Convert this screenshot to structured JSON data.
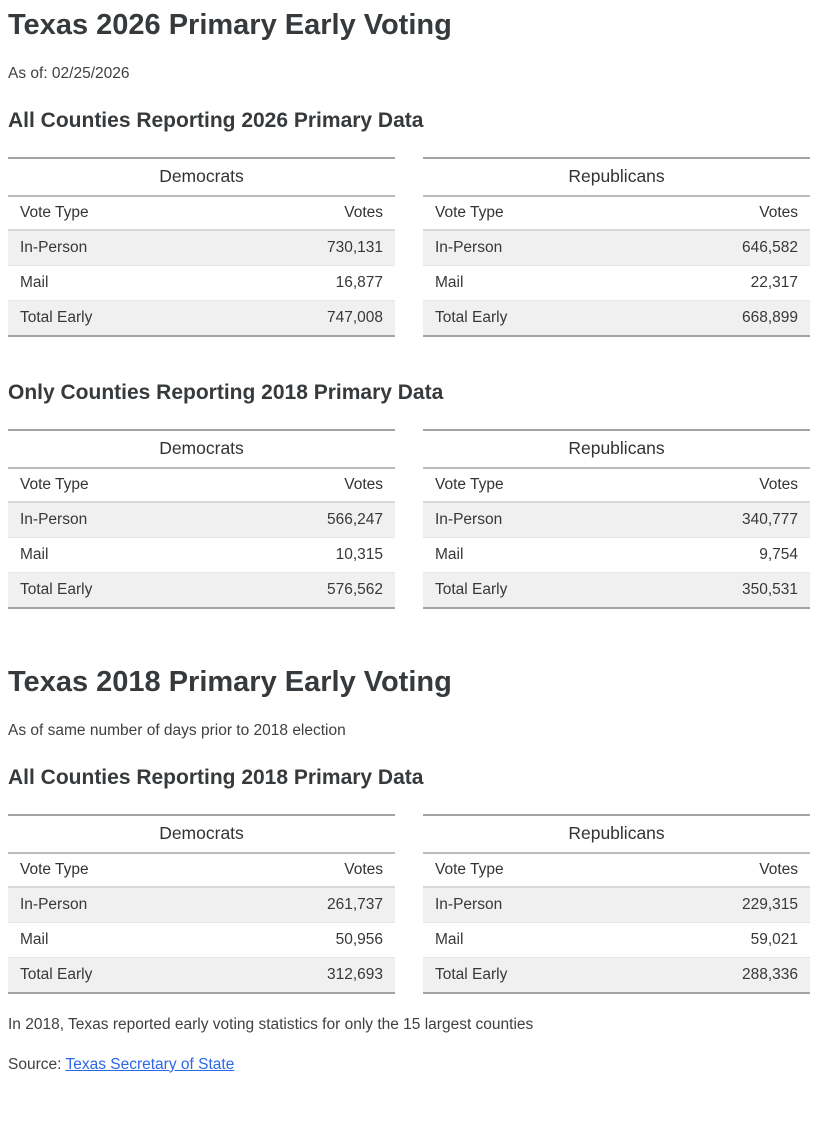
{
  "header": {
    "title": "Texas 2026 Primary Early Voting",
    "asof": "As of: 02/25/2026"
  },
  "header2": {
    "title": "Texas 2018 Primary Early Voting",
    "asof": "As of same number of days prior to 2018 election"
  },
  "colors": {
    "heading_text": "#373a3c",
    "body_text": "#404040",
    "link_blue": "#2b67e8",
    "row_stripe": "#f0f0f0",
    "border_dark": "#a3a3a3",
    "border_light": "#d9d9d9"
  },
  "sections": [
    {
      "heading": "All Counties Reporting 2026 Primary Data",
      "tables": [
        {
          "party": "Democrats",
          "columns": [
            "Vote Type",
            "Votes"
          ],
          "rows": [
            {
              "type": "In-Person",
              "votes": "730,131"
            },
            {
              "type": "Mail",
              "votes": "16,877"
            },
            {
              "type": "Total Early",
              "votes": "747,008"
            }
          ]
        },
        {
          "party": "Republicans",
          "columns": [
            "Vote Type",
            "Votes"
          ],
          "rows": [
            {
              "type": "In-Person",
              "votes": "646,582"
            },
            {
              "type": "Mail",
              "votes": "22,317"
            },
            {
              "type": "Total Early",
              "votes": "668,899"
            }
          ]
        }
      ]
    },
    {
      "heading": "Only Counties Reporting 2018 Primary Data",
      "tables": [
        {
          "party": "Democrats",
          "columns": [
            "Vote Type",
            "Votes"
          ],
          "rows": [
            {
              "type": "In-Person",
              "votes": "566,247"
            },
            {
              "type": "Mail",
              "votes": "10,315"
            },
            {
              "type": "Total Early",
              "votes": "576,562"
            }
          ]
        },
        {
          "party": "Republicans",
          "columns": [
            "Vote Type",
            "Votes"
          ],
          "rows": [
            {
              "type": "In-Person",
              "votes": "340,777"
            },
            {
              "type": "Mail",
              "votes": "9,754"
            },
            {
              "type": "Total Early",
              "votes": "350,531"
            }
          ]
        }
      ]
    },
    {
      "heading": "All Counties Reporting 2018 Primary Data",
      "tables": [
        {
          "party": "Democrats",
          "columns": [
            "Vote Type",
            "Votes"
          ],
          "rows": [
            {
              "type": "In-Person",
              "votes": "261,737"
            },
            {
              "type": "Mail",
              "votes": "50,956"
            },
            {
              "type": "Total Early",
              "votes": "312,693"
            }
          ]
        },
        {
          "party": "Republicans",
          "columns": [
            "Vote Type",
            "Votes"
          ],
          "rows": [
            {
              "type": "In-Person",
              "votes": "229,315"
            },
            {
              "type": "Mail",
              "votes": "59,021"
            },
            {
              "type": "Total Early",
              "votes": "288,336"
            }
          ]
        }
      ]
    }
  ],
  "footer": {
    "note": "In 2018, Texas reported early voting statistics for only the 15 largest counties",
    "source_prefix": "Source:",
    "source_link": "Texas Secretary of State"
  }
}
